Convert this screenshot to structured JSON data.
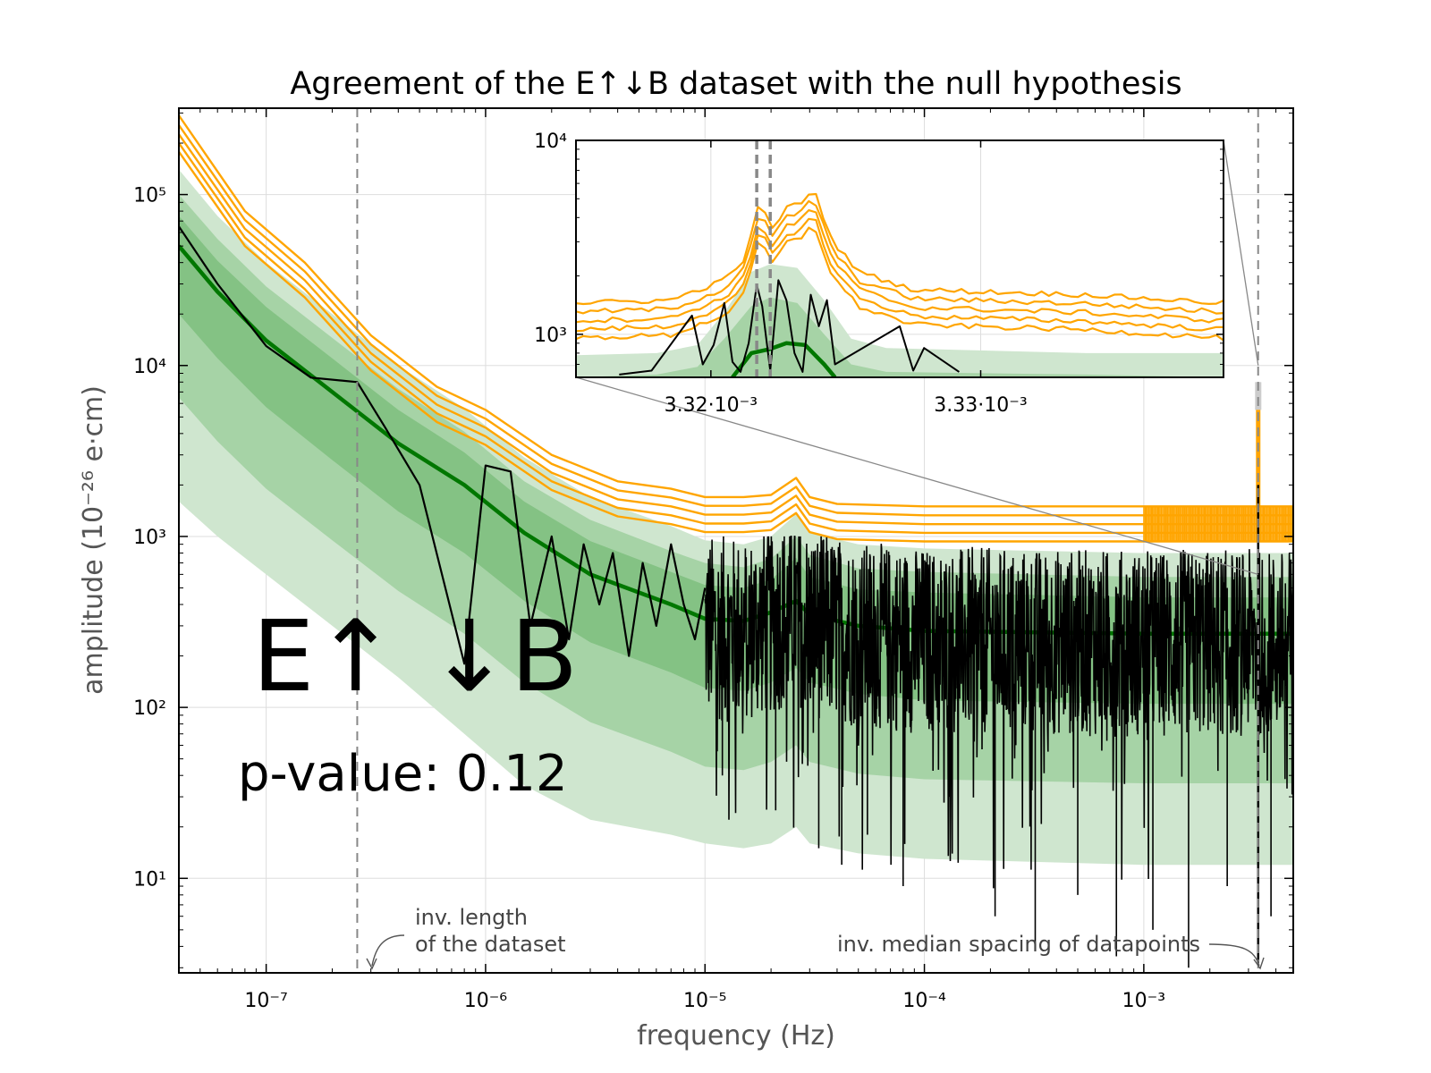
{
  "chart_data": {
    "type": "line",
    "title": "Agreement of the E↑↓B dataset with the null hypothesis",
    "xlabel": "frequency (Hz)",
    "ylabel": "amplitude (10⁻²⁶ e·cm)",
    "x_scale": "log",
    "y_scale": "log",
    "xlim": [
      4e-08,
      0.0048
    ],
    "ylim": [
      2.8,
      320000
    ],
    "grid": true,
    "x_ticks": [
      {
        "value": 1e-07,
        "label": "10⁻⁷"
      },
      {
        "value": 1e-06,
        "label": "10⁻⁶"
      },
      {
        "value": 1e-05,
        "label": "10⁻⁵"
      },
      {
        "value": 0.0001,
        "label": "10⁻⁴"
      },
      {
        "value": 0.001,
        "label": "10⁻³"
      }
    ],
    "y_ticks": [
      {
        "value": 10,
        "label": "10¹"
      },
      {
        "value": 100,
        "label": "10²"
      },
      {
        "value": 1000,
        "label": "10³"
      },
      {
        "value": 10000,
        "label": "10⁴"
      },
      {
        "value": 100000,
        "label": "10⁵"
      }
    ],
    "dataset_label": "E↑ ↓B",
    "p_value_text": "p-value: 0.12",
    "colors": {
      "threshold": "#ffa500",
      "median": "#007700",
      "band_outer": "#cfe6cf",
      "band_mid": "#a6d3a6",
      "band_inner": "#84c284",
      "data": "#000000",
      "vline": "#888888",
      "grid": "#dddddd"
    },
    "threshold_curves": {
      "x": [
        4e-08,
        8e-08,
        1.5e-07,
        3e-07,
        6e-07,
        1e-06,
        2e-06,
        4e-06,
        7e-06,
        1e-05,
        1.5e-05,
        2e-05,
        2.6e-05,
        3e-05,
        4e-05,
        0.0001,
        0.001,
        0.0048
      ],
      "series": [
        {
          "values": [
            290000,
            80000,
            40000,
            15000,
            7500,
            5500,
            3000,
            2100,
            1900,
            1700,
            1700,
            1750,
            2200,
            1700,
            1550,
            1500,
            1500,
            1500
          ]
        },
        {
          "values": [
            255000,
            71000,
            35500,
            13300,
            6650,
            4880,
            2660,
            1860,
            1690,
            1510,
            1510,
            1555,
            1950,
            1510,
            1375,
            1330,
            1330,
            1330
          ]
        },
        {
          "values": [
            225000,
            63000,
            31500,
            11800,
            5900,
            4330,
            2360,
            1650,
            1500,
            1340,
            1340,
            1380,
            1730,
            1340,
            1220,
            1180,
            1180,
            1180
          ]
        },
        {
          "values": [
            200000,
            56000,
            28000,
            10500,
            5250,
            3850,
            2100,
            1470,
            1330,
            1190,
            1190,
            1225,
            1540,
            1190,
            1085,
            1050,
            1050,
            1050
          ]
        },
        {
          "values": [
            178000,
            50000,
            25000,
            9350,
            4670,
            3430,
            1870,
            1310,
            1180,
            1060,
            1060,
            1090,
            1370,
            1060,
            965,
            935,
            935,
            935
          ]
        }
      ]
    },
    "median_curve": {
      "x": [
        4e-08,
        6e-08,
        1e-07,
        2e-07,
        4e-07,
        8e-07,
        1.5e-06,
        3e-06,
        7e-06,
        1e-05,
        1.5e-05,
        2e-05,
        2.6e-05,
        3e-05,
        5e-05,
        0.0001,
        0.001,
        0.0048
      ],
      "values": [
        50000,
        27000,
        14000,
        7000,
        3500,
        2000,
        1050,
        600,
        400,
        330,
        320,
        360,
        420,
        350,
        300,
        280,
        270,
        270
      ]
    },
    "bands": {
      "x": [
        4e-08,
        6e-08,
        1e-07,
        2e-07,
        4e-07,
        8e-07,
        1.5e-06,
        3e-06,
        7e-06,
        1e-05,
        1.5e-05,
        2e-05,
        2.6e-05,
        3e-05,
        5e-05,
        0.0001,
        0.001,
        0.0048
      ],
      "outer": {
        "upper": [
          140000,
          75000,
          40000,
          20000,
          10000,
          5600,
          2900,
          1700,
          1150,
          950,
          900,
          1000,
          1350,
          1050,
          900,
          850,
          800,
          800
        ],
        "lower": [
          1600,
          1000,
          600,
          300,
          150,
          70,
          35,
          22,
          18,
          16,
          15,
          16,
          20,
          16,
          14,
          13,
          12,
          12
        ]
      },
      "mid": {
        "upper": [
          100000,
          55000,
          29000,
          14500,
          7300,
          4100,
          2100,
          1250,
          820,
          700,
          660,
          740,
          1000,
          780,
          650,
          620,
          580,
          580
        ]
      },
      "inner": {
        "upper": [
          75000,
          41000,
          22000,
          11000,
          5500,
          3100,
          1600,
          940,
          620,
          520,
          500,
          560,
          750,
          580,
          490,
          470,
          440,
          440
        ],
        "lower": [
          20000,
          11000,
          5700,
          2800,
          1400,
          800,
          420,
          240,
          160,
          130,
          125,
          140,
          170,
          140,
          120,
          110,
          105,
          105
        ]
      },
      "mid_lower": [
        6500,
        3600,
        1900,
        950,
        480,
        270,
        140,
        82,
        55,
        45,
        43,
        48,
        60,
        48,
        41,
        38,
        36,
        36
      ]
    },
    "data_curve": {
      "x": [
        4e-08,
        6e-08,
        1e-07,
        1.6e-07,
        2.6e-07,
        3.5e-07,
        5e-07,
        8e-07,
        1e-06,
        1.3e-06,
        1.6e-06,
        2e-06,
        2.4e-06,
        2.8e-06,
        3.3e-06,
        3.8e-06,
        4.5e-06,
        5.2e-06,
        6e-06,
        7e-06,
        8e-06,
        9e-06,
        1e-05
      ],
      "values": [
        65000,
        30000,
        13000,
        8500,
        8000,
        4300,
        2000,
        180,
        2600,
        2400,
        300,
        1000,
        250,
        900,
        400,
        800,
        200,
        700,
        300,
        900,
        400,
        250,
        500
      ],
      "noise_range": {
        "x_from": 1e-05,
        "x_to": 0.0048,
        "typical_low": 40,
        "typical_high": 800
      }
    },
    "vertical_lines": [
      {
        "x": 2.6e-07,
        "label": "inv. length\nof the dataset"
      },
      {
        "x": 0.00332,
        "label": "inv. median spacing of datapoints"
      }
    ],
    "inset": {
      "xlim": [
        0.003315,
        0.003339
      ],
      "ylim": [
        600,
        10000
      ],
      "x_ticks": [
        {
          "value": 0.00332,
          "label": "3.32·10⁻³"
        },
        {
          "value": 0.00333,
          "label": "3.33·10⁻³"
        }
      ],
      "y_ticks": [
        {
          "value": 1000,
          "label": "10³"
        },
        {
          "value": 10000,
          "label": "10⁴"
        }
      ],
      "vlines": [
        0.0033217,
        0.0033222
      ],
      "threshold_x": [
        0.003315,
        0.0033185,
        0.0033205,
        0.0033213,
        0.0033218,
        0.0033223,
        0.0033228,
        0.0033233,
        0.0033238,
        0.0033245,
        0.0033255,
        0.0033275,
        0.0033339,
        0.003339
      ],
      "threshold_base": [
        1450,
        1500,
        1900,
        2500,
        4800,
        3500,
        4500,
        4700,
        5700,
        3000,
        2100,
        1700,
        1600,
        1450
      ],
      "median_x": [
        0.0033208,
        0.0033215,
        0.0033222,
        0.0033228,
        0.0033235,
        0.0033242,
        0.0033246
      ],
      "median_values": [
        600,
        800,
        840,
        900,
        880,
        700,
        600
      ],
      "band_x": [
        0.003315,
        0.003318,
        0.0033195,
        0.0033205,
        0.0033215,
        0.0033222,
        0.0033232,
        0.0033242,
        0.0033252,
        0.0033265,
        0.0033339,
        0.003339
      ],
      "band_outer_upper": [
        780,
        800,
        880,
        1300,
        2100,
        2300,
        2200,
        1500,
        950,
        850,
        800,
        800
      ],
      "band_inner_upper": [
        600,
        620,
        680,
        950,
        1400,
        1550,
        1450,
        1000,
        700,
        640,
        620,
        600
      ],
      "data_x": [
        0.0033166,
        0.0033178,
        0.0033193,
        0.0033197,
        0.0033201,
        0.0033205,
        0.0033208,
        0.0033211,
        0.0033214,
        0.0033217,
        0.0033219,
        0.0033222,
        0.0033225,
        0.0033228,
        0.0033231,
        0.0033234,
        0.0033237,
        0.003324,
        0.0033243,
        0.0033246,
        0.003327,
        0.0033275,
        0.0033279,
        0.0033292
      ],
      "data_values": [
        620,
        650,
        1250,
        700,
        880,
        1450,
        720,
        640,
        900,
        1800,
        1400,
        650,
        1900,
        1500,
        800,
        640,
        1600,
        1100,
        1500,
        700,
        1100,
        650,
        850,
        640
      ]
    }
  }
}
